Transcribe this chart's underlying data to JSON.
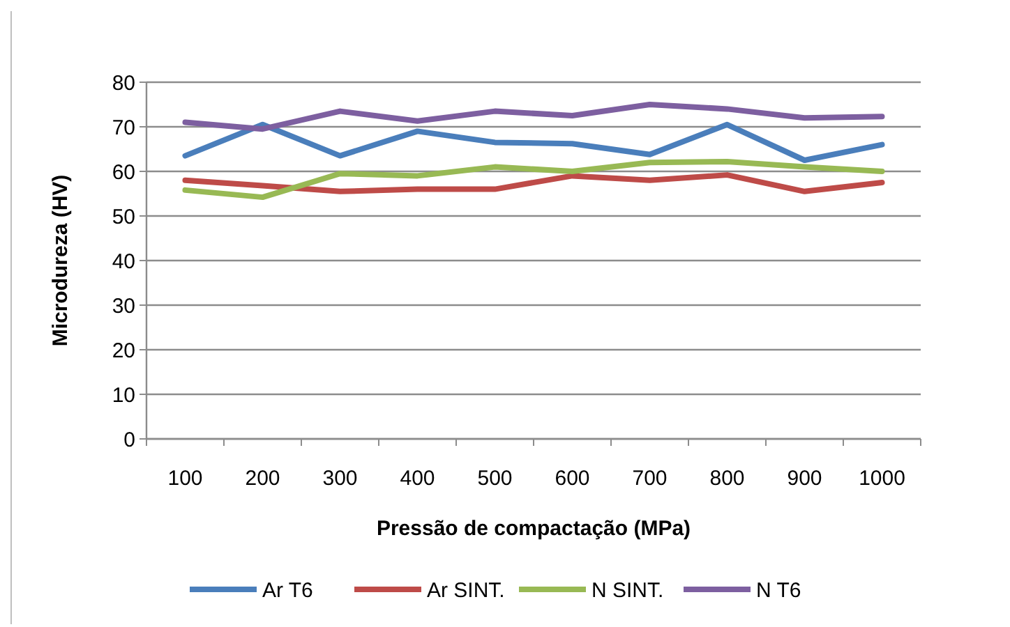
{
  "chart_data": {
    "type": "line",
    "xlabel": "Pressão de compactação (MPa)",
    "ylabel": "Microdureza (HV)",
    "categories": [
      "100",
      "200",
      "300",
      "400",
      "500",
      "600",
      "700",
      "800",
      "900",
      "1000"
    ],
    "series": [
      {
        "name": "Ar T6",
        "color": "#4a7ebb",
        "values": [
          63.5,
          70.5,
          63.5,
          69,
          66.5,
          66.2,
          63.8,
          70.5,
          62.5,
          66
        ]
      },
      {
        "name": "Ar SINT.",
        "color": "#be4b48",
        "values": [
          58,
          56.8,
          55.5,
          56,
          56,
          59,
          58,
          59.2,
          55.5,
          57.5
        ]
      },
      {
        "name": "N SINT.",
        "color": "#98b954",
        "values": [
          55.8,
          54.2,
          59.5,
          59,
          61,
          60,
          62,
          62.2,
          61,
          60
        ]
      },
      {
        "name": "N T6",
        "color": "#7d5fa0",
        "values": [
          71,
          69.5,
          73.5,
          71.3,
          73.5,
          72.5,
          75,
          74,
          72,
          72.3
        ]
      }
    ],
    "ylim": [
      0,
      80
    ],
    "yticks": [
      0,
      10,
      20,
      30,
      40,
      50,
      60,
      70,
      80
    ],
    "grid": "y",
    "legend": "bottom",
    "marker": "none",
    "line_style": "solid"
  }
}
